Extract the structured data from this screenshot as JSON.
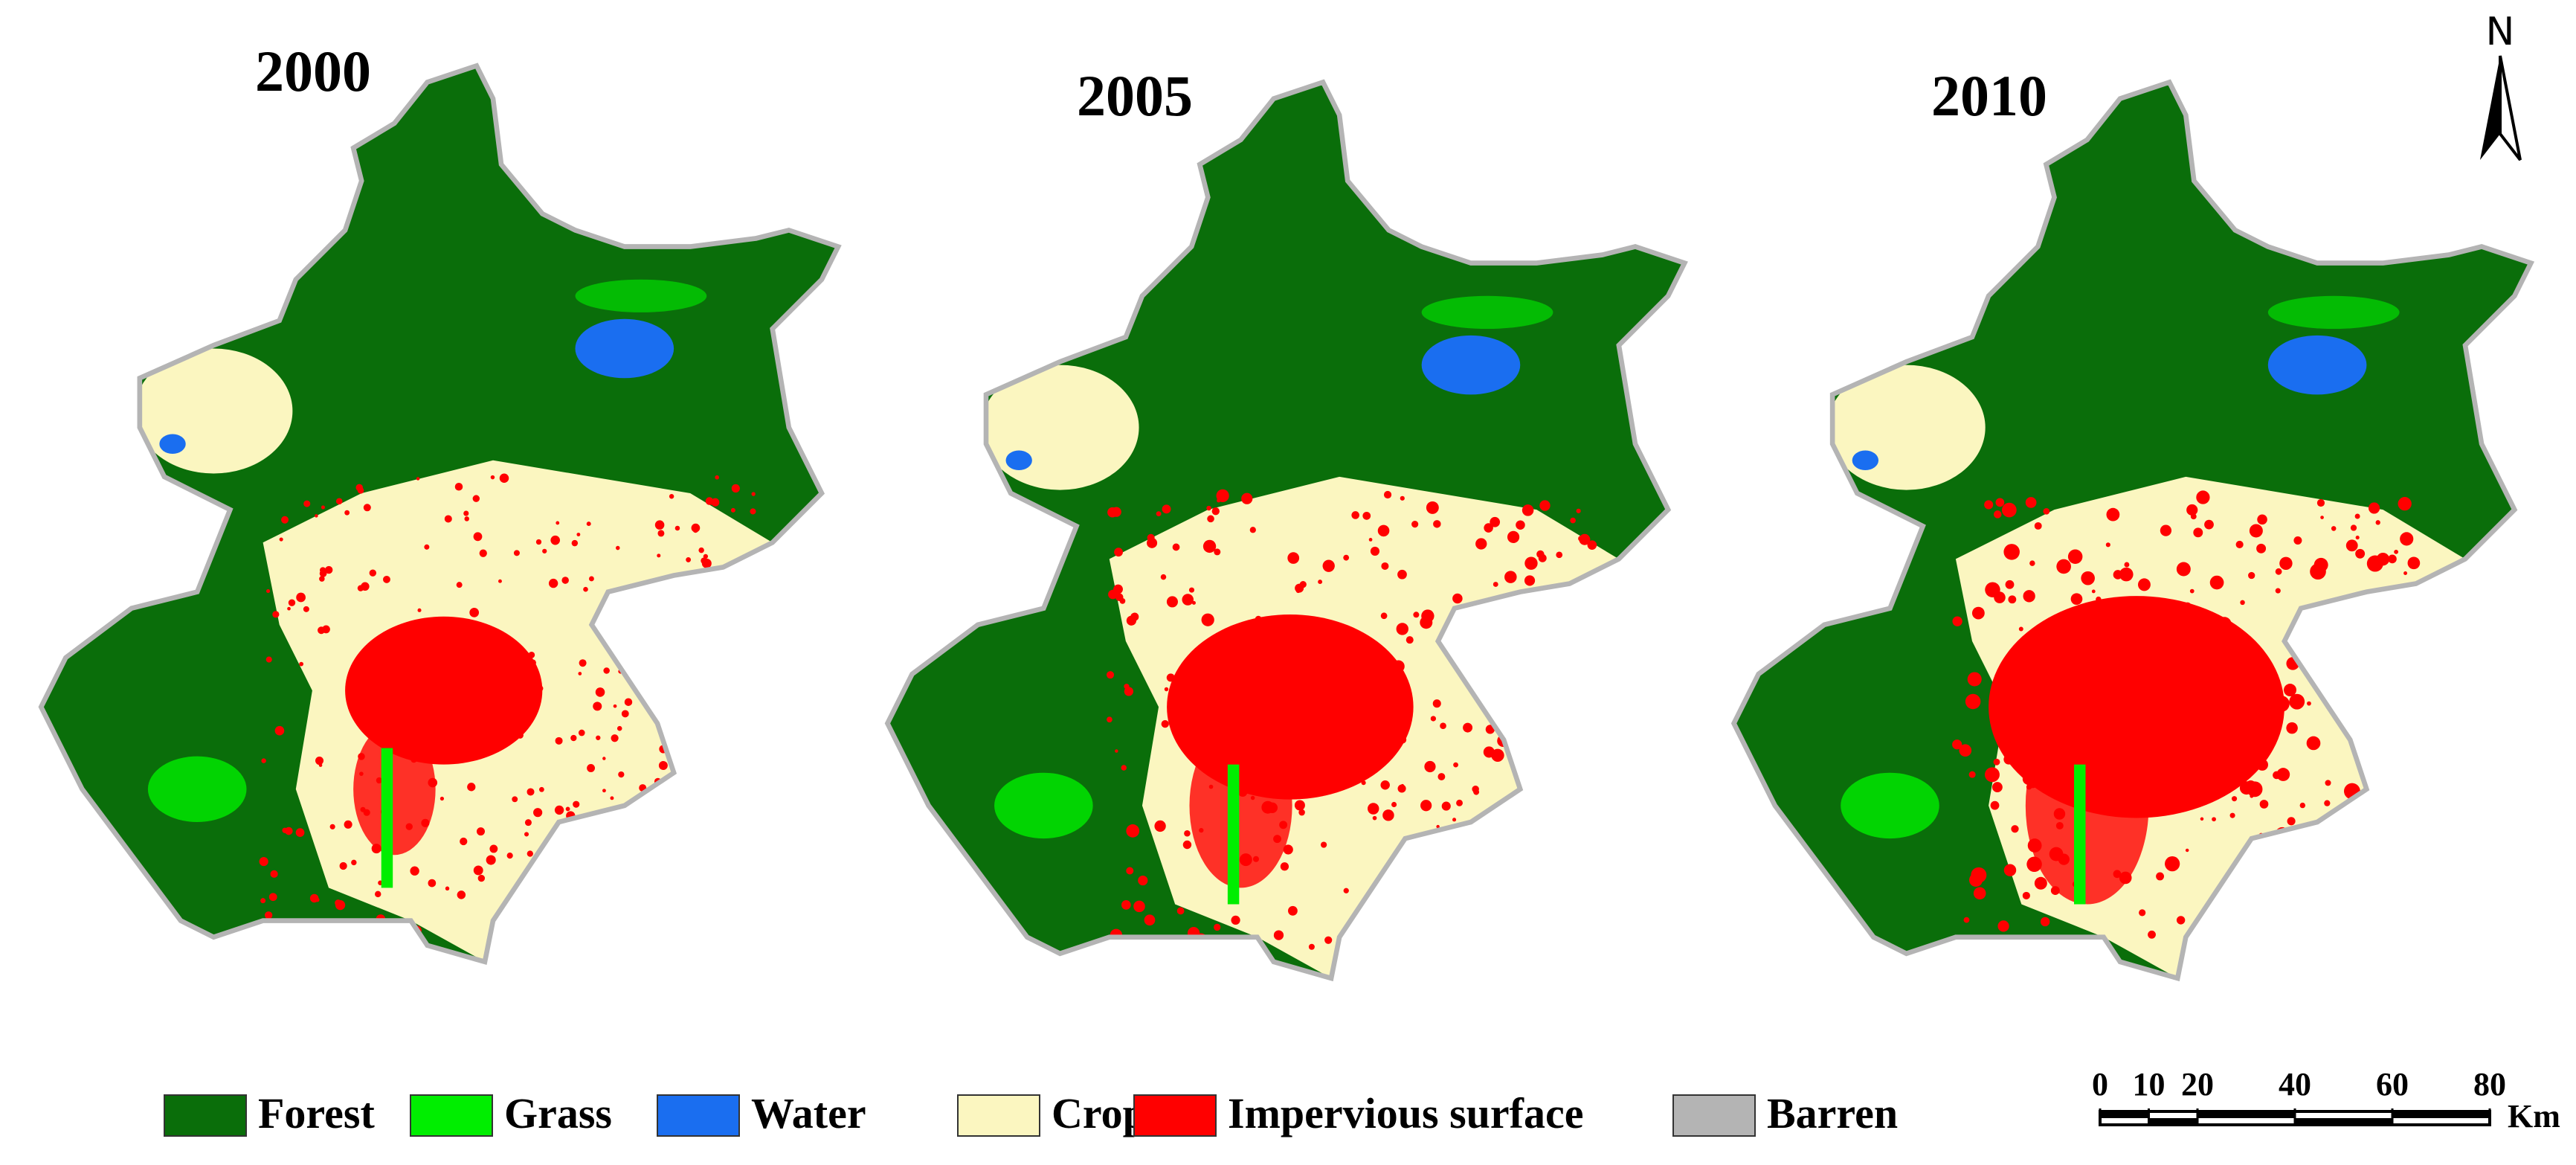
{
  "maps": [
    {
      "year": "2000"
    },
    {
      "year": "2005"
    },
    {
      "year": "2010"
    }
  ],
  "north_label": "N",
  "legend": [
    {
      "label": "Forest",
      "color": "#0a6e0a"
    },
    {
      "label": "Grass",
      "color": "#00ee00"
    },
    {
      "label": "Water",
      "color": "#1a6ef0"
    },
    {
      "label": "Crop",
      "color": "#fbf6c0"
    },
    {
      "label": "Impervious surface",
      "color": "#ff0000"
    },
    {
      "label": "Barren",
      "color": "#b4b4b4"
    }
  ],
  "scale_bar": {
    "ticks": [
      0,
      10,
      20,
      40,
      60,
      80
    ],
    "unit": "Km"
  }
}
